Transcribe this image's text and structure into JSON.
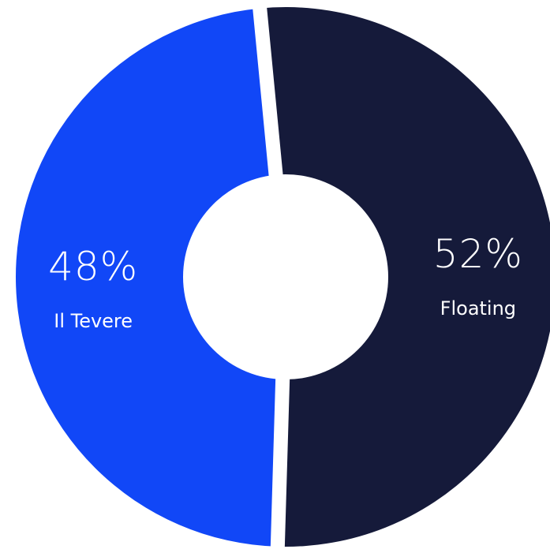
{
  "chart_data": {
    "type": "pie",
    "variant": "donut",
    "title": "",
    "slices": [
      {
        "label": "Floating",
        "value": 52,
        "display": "52%",
        "color": "#151a3a"
      },
      {
        "label": "Il Tevere",
        "value": 48,
        "display": "48%",
        "color": "#1147f7"
      }
    ],
    "separator_color": "#ffffff",
    "background": "#ffffff",
    "legend": "none"
  }
}
